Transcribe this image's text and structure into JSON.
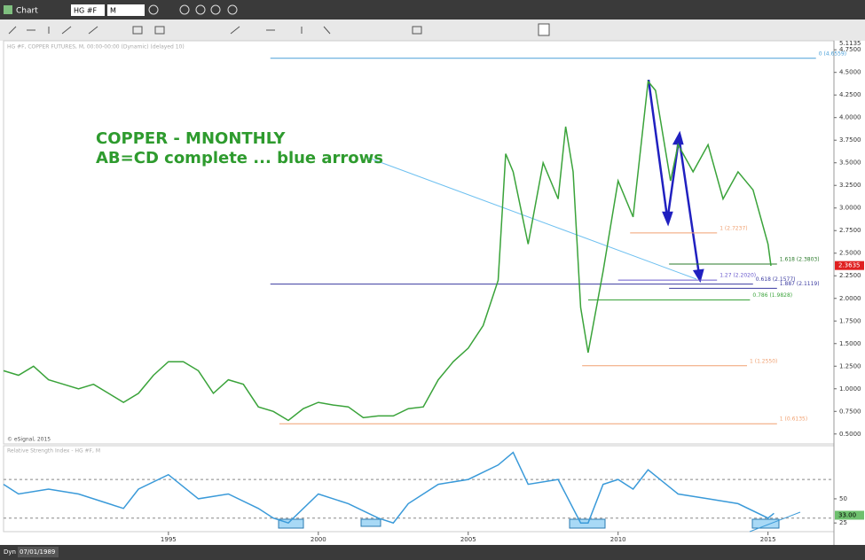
{
  "app": {
    "window_title": "Chart",
    "symbol": "HG #F",
    "interval": "M",
    "dyn": "Dyn",
    "start_date": "07/01/1989"
  },
  "chart_data": [
    {
      "type": "line",
      "header": "HG #F, COPPER FUTURES, M, 00:00-00:00 (Dynamic) (delayed 10)",
      "title": "COPPER - MNONTHLY",
      "subtitle": "AB=CD complete ... blue arrows",
      "copyright": "© eSignal, 2015",
      "color": "#3aa33a",
      "x": [
        1989.5,
        1990,
        1990.5,
        1991,
        1991.5,
        1992,
        1992.5,
        1993,
        1993.5,
        1994,
        1994.5,
        1995,
        1995.5,
        1996,
        1996.5,
        1997,
        1997.5,
        1998,
        1998.5,
        1999,
        1999.5,
        2000,
        2000.5,
        2001,
        2001.5,
        2002,
        2002.5,
        2003,
        2003.5,
        2004,
        2004.5,
        2005,
        2005.5,
        2006,
        2006.25,
        2006.5,
        2007,
        2007.5,
        2008,
        2008.25,
        2008.5,
        2008.75,
        2009,
        2009.5,
        2010,
        2010.5,
        2011,
        2011.25,
        2011.75,
        2012,
        2012.5,
        2013,
        2013.5,
        2014,
        2014.5,
        2015,
        2015.1
      ],
      "values": [
        1.2,
        1.15,
        1.25,
        1.1,
        1.05,
        1.0,
        1.05,
        0.95,
        0.85,
        0.95,
        1.15,
        1.3,
        1.3,
        1.2,
        0.95,
        1.1,
        1.05,
        0.8,
        0.75,
        0.65,
        0.78,
        0.85,
        0.82,
        0.8,
        0.68,
        0.7,
        0.7,
        0.78,
        0.8,
        1.1,
        1.3,
        1.45,
        1.7,
        2.2,
        3.6,
        3.4,
        2.6,
        3.5,
        3.1,
        3.9,
        3.4,
        1.9,
        1.4,
        2.3,
        3.3,
        2.9,
        4.4,
        4.3,
        3.3,
        3.7,
        3.4,
        3.7,
        3.1,
        3.4,
        3.2,
        2.6,
        2.36
      ],
      "xlim": [
        1989.5,
        2017.2
      ],
      "ylim": [
        0.39,
        4.85
      ],
      "xticks": [
        1995,
        2000,
        2005,
        2010,
        2015
      ],
      "yticks": [
        {
          "value": 0.5,
          "label": "0.5000"
        },
        {
          "value": 0.75,
          "label": "0.7500"
        },
        {
          "value": 1,
          "label": "1.0000"
        },
        {
          "value": 1.25,
          "label": "1.2500"
        },
        {
          "value": 1.5,
          "label": "1.5000"
        },
        {
          "value": 1.75,
          "label": "1.7500"
        },
        {
          "value": 2,
          "label": "2.0000"
        },
        {
          "value": 2.25,
          "label": "2.2500"
        },
        {
          "value": 2.5,
          "label": "2.5000"
        },
        {
          "value": 2.75,
          "label": "2.7500"
        },
        {
          "value": 3,
          "label": "3.0000"
        },
        {
          "value": 3.25,
          "label": "3.2500"
        },
        {
          "value": 3.5,
          "label": "3.5000"
        },
        {
          "value": 3.75,
          "label": "3.7500"
        },
        {
          "value": 4,
          "label": "4.0000"
        },
        {
          "value": 4.25,
          "label": "4.2500"
        },
        {
          "value": 4.5,
          "label": "4.5000"
        },
        {
          "value": 4.75,
          "label": "4.7500"
        }
      ],
      "high_label": 5.1135,
      "last_price": 2.3635,
      "levels": [
        {
          "value": 4.6559,
          "label": "0 (4.6559)",
          "color": "#4a9fd8",
          "x_start": 1998.4,
          "x_end": 2016.6
        },
        {
          "value": 2.7237,
          "label": "1 (2.7237)",
          "color": "#f0a070",
          "x_start": 2010.4,
          "x_end": 2013.3
        },
        {
          "value": 2.3803,
          "label": "1.618 (2.3803)",
          "color": "#2a7a2a",
          "x_start": 2011.7,
          "x_end": 2015.3
        },
        {
          "value": 2.202,
          "label": "1.27 (2.2020)",
          "color": "#6a5acd",
          "x_start": 2010.0,
          "x_end": 2013.3
        },
        {
          "value": 2.1577,
          "label": "0.618 (2.1577)",
          "color": "#3a3aa0",
          "x_start": 1998.4,
          "x_end": 2014.5
        },
        {
          "value": 2.1119,
          "label": "1.887 (2.1119)",
          "color": "#3a3aa0",
          "x_start": 2011.7,
          "x_end": 2015.3
        },
        {
          "value": 1.9828,
          "label": "0.786 (1.9828)",
          "color": "#3aa33a",
          "x_start": 2009.0,
          "x_end": 2014.4
        },
        {
          "value": 1.255,
          "label": "1 (1.2550)",
          "color": "#f0a070",
          "x_start": 2008.8,
          "x_end": 2014.3
        },
        {
          "value": 0.6135,
          "label": "1 (0.6135)",
          "color": "#f0a070",
          "x_start": 1998.7,
          "x_end": 2015.3
        }
      ]
    },
    {
      "type": "line",
      "header": "Relative Strength Index - HG #F, M",
      "color": "#3a9ad9",
      "x": [
        1989.5,
        1990,
        1991,
        1992,
        1993,
        1993.5,
        1994,
        1995,
        1996,
        1997,
        1998,
        1998.5,
        1999,
        2000,
        2001,
        2002,
        2002.5,
        2003,
        2004,
        2005,
        2006,
        2006.5,
        2007,
        2008,
        2008.75,
        2009,
        2009.5,
        2010,
        2010.5,
        2011,
        2012,
        2013,
        2014,
        2015,
        2015.2
      ],
      "values": [
        65,
        55,
        60,
        55,
        45,
        40,
        60,
        75,
        50,
        55,
        40,
        30,
        25,
        55,
        45,
        30,
        25,
        45,
        65,
        70,
        85,
        98,
        65,
        70,
        25,
        25,
        65,
        70,
        60,
        80,
        55,
        50,
        45,
        30,
        35
      ],
      "xlim": [
        1989.5,
        2017.2
      ],
      "ylim": [
        16,
        105
      ],
      "yticks": [
        25,
        50
      ],
      "reference_lines": [
        30,
        70
      ],
      "last_value": {
        "value": 33,
        "label": "33.00"
      }
    }
  ]
}
